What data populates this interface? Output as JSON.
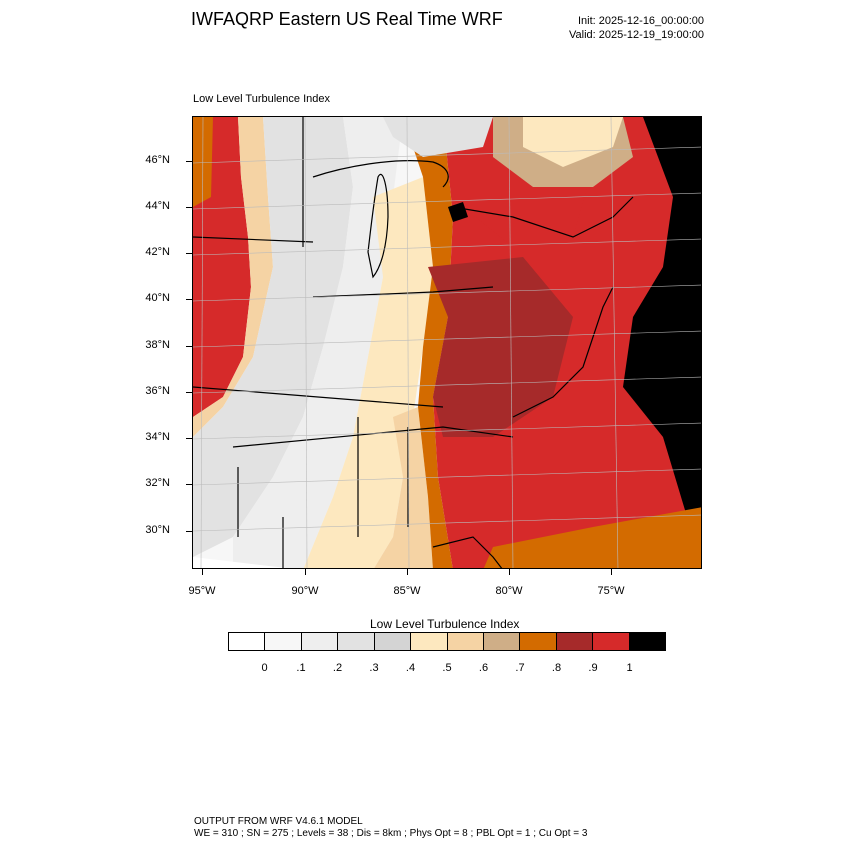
{
  "header": {
    "title": "IWFAQRP Eastern US Real Time WRF",
    "init": "Init: 2025-12-16_00:00:00",
    "valid": "Valid: 2025-12-19_19:00:00"
  },
  "map": {
    "field_label": "Low Level Turbulence Index",
    "lat_labels": [
      "46°N",
      "44°N",
      "42°N",
      "40°N",
      "38°N",
      "36°N",
      "34°N",
      "32°N",
      "30°N"
    ],
    "lon_labels": [
      "95°W",
      "90°W",
      "85°W",
      "80°W",
      "75°W"
    ]
  },
  "colorbar": {
    "title": "Low Level Turbulence Index",
    "colors": [
      "#ffffff",
      "#f7f7f7",
      "#eeeeee",
      "#e2e2e2",
      "#d4d4d4",
      "#fde8bf",
      "#f5d3a4",
      "#cfae87",
      "#d36b00",
      "#a62a2a",
      "#d62a2a",
      "#000000"
    ],
    "labels": [
      "0",
      ".1",
      ".2",
      ".3",
      ".4",
      ".5",
      ".6",
      ".7",
      ".8",
      ".9",
      "1"
    ]
  },
  "footer": {
    "line1": "OUTPUT FROM WRF V4.6.1 MODEL",
    "line2": "WE = 310 ; SN = 275 ; Levels = 38 ; Dis = 8km ; Phys Opt = 8 ; PBL Opt = 1 ; Cu Opt = 3"
  }
}
